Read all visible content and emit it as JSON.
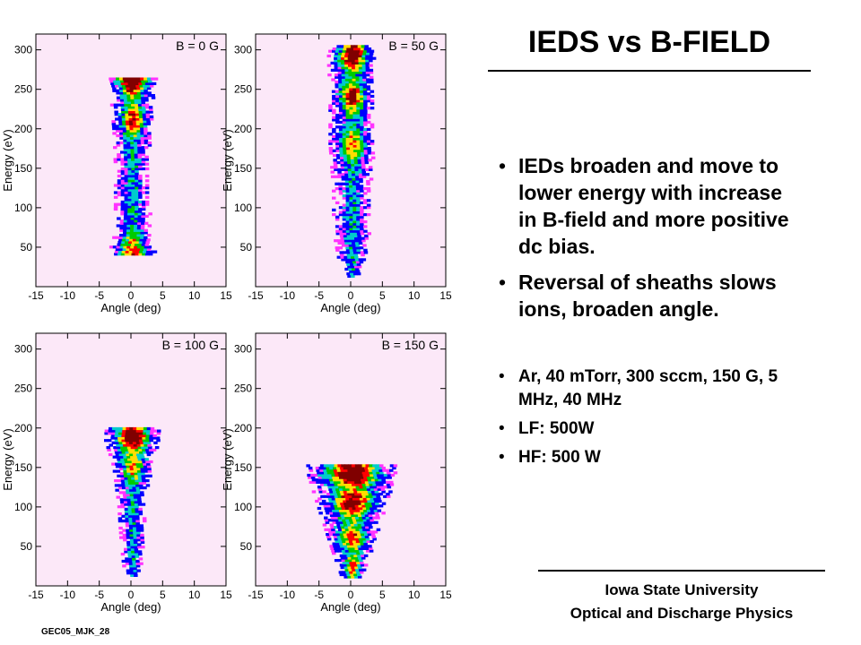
{
  "title": "IEDS vs B-FIELD",
  "bullets": [
    "IEDs broaden and move to lower energy with increase in B-field and more positive dc bias.",
    "Reversal of sheaths slows ions, broaden angle.",
    "Ar, 40 mTorr, 300 sccm, 150 G, 5 MHz, 40 MHz",
    "LF: 500W",
    "HF: 500 W"
  ],
  "footer": {
    "line1": "Iowa State University",
    "line2": "Optical and Discharge Physics"
  },
  "slide_id": "GEC05_MJK_28",
  "colors": {
    "panel_bg": "#FCE8F8",
    "low": "#FF33FF",
    "mid_low": "#0000FF",
    "mid": "#00CCCC",
    "mid_high": "#00CC00",
    "high": "#FFDD00",
    "peak": "#FF0000",
    "max": "#800000"
  },
  "chart_data": [
    {
      "type": "heatmap",
      "label": "B = 0 G",
      "xlabel": "Angle (deg)",
      "ylabel": "Energy (eV)",
      "xlim": [
        -15,
        15
      ],
      "ylim": [
        0,
        320
      ],
      "xticks": [
        -15,
        -10,
        -5,
        0,
        5,
        10,
        15
      ],
      "yticks": [
        50,
        100,
        150,
        200,
        250,
        300
      ],
      "profile": [
        [
          40,
          2.8
        ],
        [
          60,
          2.2
        ],
        [
          100,
          2.0
        ],
        [
          150,
          2.0
        ],
        [
          200,
          2.2
        ],
        [
          250,
          2.6
        ],
        [
          262,
          3.0
        ]
      ],
      "peaks": [
        [
          258,
          1.0
        ],
        [
          210,
          0.7
        ],
        [
          45,
          0.6
        ]
      ]
    },
    {
      "type": "heatmap",
      "label": "B = 50 G",
      "xlabel": "Angle (deg)",
      "ylabel": "Energy (eV)",
      "xlim": [
        -15,
        15
      ],
      "ylim": [
        0,
        320
      ],
      "xticks": [
        -15,
        -10,
        -5,
        0,
        5,
        10,
        15
      ],
      "yticks": [
        50,
        100,
        150,
        200,
        250,
        300
      ],
      "profile": [
        [
          12,
          0.8
        ],
        [
          35,
          1.6
        ],
        [
          70,
          2.2
        ],
        [
          120,
          2.2
        ],
        [
          180,
          2.6
        ],
        [
          240,
          2.6
        ],
        [
          290,
          2.8
        ],
        [
          305,
          2.4
        ]
      ],
      "peaks": [
        [
          292,
          1.0
        ],
        [
          240,
          0.75
        ],
        [
          180,
          0.55
        ]
      ]
    },
    {
      "type": "heatmap",
      "label": "B = 100 G",
      "xlabel": "Angle (deg)",
      "ylabel": "Energy (eV)",
      "xlim": [
        -15,
        15
      ],
      "ylim": [
        0,
        320
      ],
      "xticks": [
        -15,
        -10,
        -5,
        0,
        5,
        10,
        15
      ],
      "yticks": [
        50,
        100,
        150,
        200,
        250,
        300
      ],
      "profile": [
        [
          12,
          0.9
        ],
        [
          50,
          1.3
        ],
        [
          100,
          1.6
        ],
        [
          150,
          2.2
        ],
        [
          185,
          3.2
        ],
        [
          200,
          3.0
        ]
      ],
      "peaks": [
        [
          188,
          1.0
        ],
        [
          150,
          0.5
        ]
      ]
    },
    {
      "type": "heatmap",
      "label": "B = 150 G",
      "xlabel": "Angle (deg)",
      "ylabel": "Energy (eV)",
      "xlim": [
        -15,
        15
      ],
      "ylim": [
        0,
        320
      ],
      "xticks": [
        -15,
        -10,
        -5,
        0,
        5,
        10,
        15
      ],
      "yticks": [
        50,
        100,
        150,
        200,
        250,
        300
      ],
      "profile": [
        [
          10,
          1.2
        ],
        [
          40,
          2.2
        ],
        [
          80,
          3.4
        ],
        [
          120,
          4.6
        ],
        [
          150,
          5.4
        ],
        [
          152,
          5.0
        ]
      ],
      "peaks": [
        [
          140,
          1.0
        ],
        [
          105,
          0.85
        ],
        [
          60,
          0.6
        ],
        [
          20,
          0.55
        ]
      ]
    }
  ]
}
